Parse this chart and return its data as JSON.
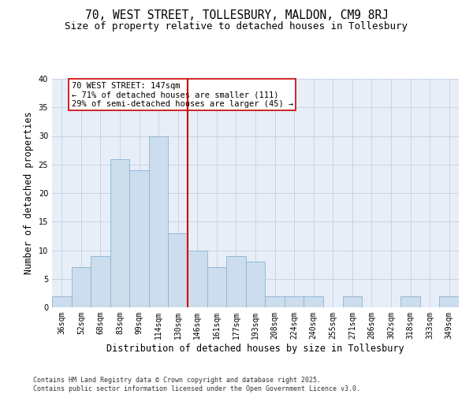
{
  "title_line1": "70, WEST STREET, TOLLESBURY, MALDON, CM9 8RJ",
  "title_line2": "Size of property relative to detached houses in Tollesbury",
  "xlabel": "Distribution of detached houses by size in Tollesbury",
  "ylabel": "Number of detached properties",
  "bin_labels": [
    "36sqm",
    "52sqm",
    "68sqm",
    "83sqm",
    "99sqm",
    "114sqm",
    "130sqm",
    "146sqm",
    "161sqm",
    "177sqm",
    "193sqm",
    "208sqm",
    "224sqm",
    "240sqm",
    "255sqm",
    "271sqm",
    "286sqm",
    "302sqm",
    "318sqm",
    "333sqm",
    "349sqm"
  ],
  "bar_values": [
    2,
    7,
    9,
    26,
    24,
    30,
    13,
    10,
    7,
    9,
    8,
    2,
    2,
    2,
    0,
    2,
    0,
    0,
    2,
    0,
    2
  ],
  "bar_color": "#ccdded",
  "bar_edgecolor": "#8ab4d4",
  "vline_x": 6.5,
  "vline_color": "#cc0000",
  "annotation_box_text": "70 WEST STREET: 147sqm\n← 71% of detached houses are smaller (111)\n29% of semi-detached houses are larger (45) →",
  "annotation_box_color": "#cc0000",
  "annotation_box_facecolor": "white",
  "ylim": [
    0,
    40
  ],
  "yticks": [
    0,
    5,
    10,
    15,
    20,
    25,
    30,
    35,
    40
  ],
  "grid_color": "#c8d4e4",
  "background_color": "#e8eef8",
  "footer_text": "Contains HM Land Registry data © Crown copyright and database right 2025.\nContains public sector information licensed under the Open Government Licence v3.0.",
  "title_fontsize": 10.5,
  "subtitle_fontsize": 9,
  "axis_label_fontsize": 8.5,
  "tick_fontsize": 7,
  "annotation_fontsize": 7.5,
  "footer_fontsize": 6
}
